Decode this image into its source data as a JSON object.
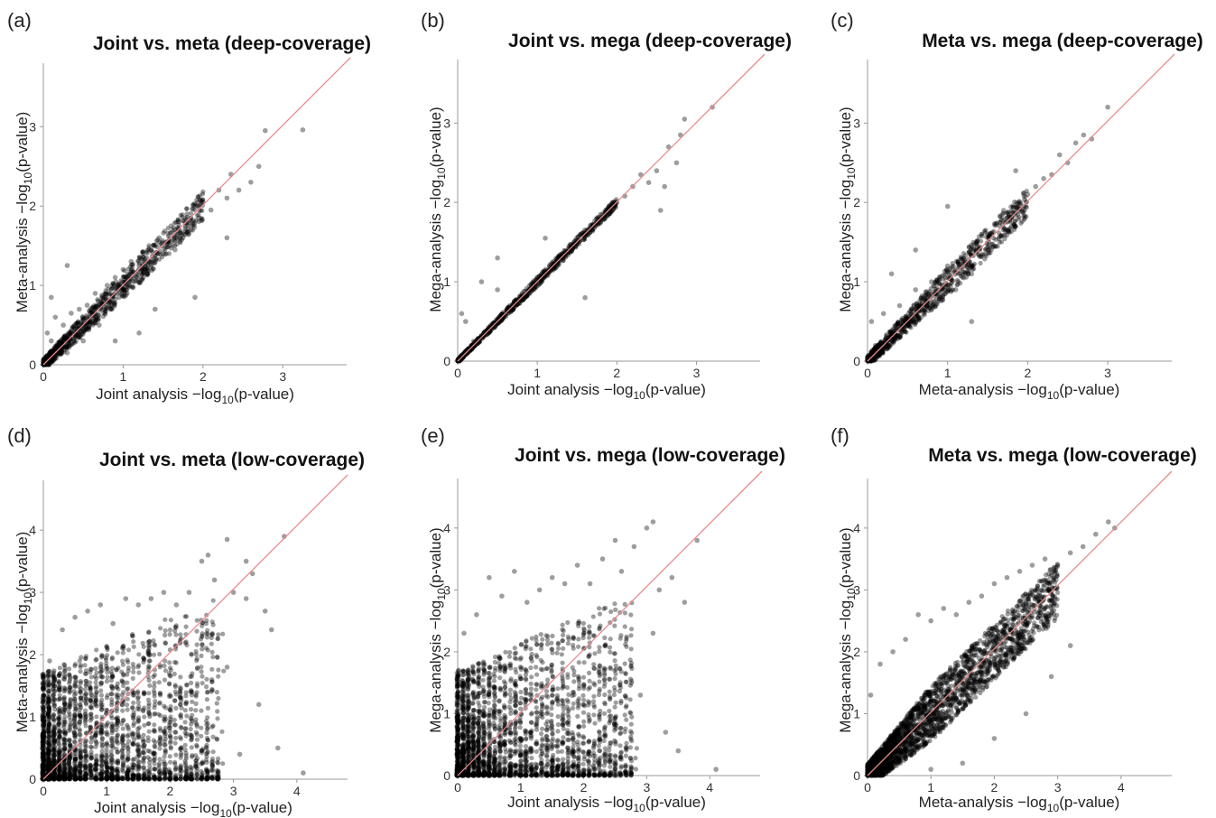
{
  "chart_data": [
    {
      "panel": "(a)",
      "type": "scatter",
      "title": "Joint vs. meta (deep-coverage)",
      "xlabel": {
        "pre": "Joint analysis −log",
        "sub": "10",
        "post": "(p-value)"
      },
      "ylabel": {
        "pre": "Meta-analysis −log",
        "sub": "10",
        "post": "(p-value)"
      },
      "xlim": [
        0,
        3.8
      ],
      "ylim": [
        0,
        3.8
      ],
      "xticks": [
        0,
        1,
        2,
        3
      ],
      "yticks": [
        0,
        1,
        2,
        3
      ],
      "reference_line": "y = x",
      "grid": false,
      "spread": 0.18,
      "xmax_bulk": 2.0,
      "points": [
        [
          0.02,
          0.05
        ],
        [
          0.05,
          0.4
        ],
        [
          0.08,
          0.12
        ],
        [
          0.1,
          0.3
        ],
        [
          0.15,
          0.6
        ],
        [
          0.2,
          0.2
        ],
        [
          0.25,
          0.5
        ],
        [
          0.3,
          0.15
        ],
        [
          0.35,
          0.65
        ],
        [
          0.4,
          0.4
        ],
        [
          0.45,
          0.7
        ],
        [
          0.5,
          0.3
        ],
        [
          0.55,
          0.75
        ],
        [
          0.6,
          0.55
        ],
        [
          0.65,
          0.9
        ],
        [
          0.7,
          0.5
        ],
        [
          0.75,
          0.8
        ],
        [
          0.8,
          1.0
        ],
        [
          0.85,
          0.7
        ],
        [
          0.9,
          1.1
        ],
        [
          0.95,
          0.85
        ],
        [
          1.0,
          1.2
        ],
        [
          1.05,
          0.9
        ],
        [
          1.1,
          1.3
        ],
        [
          1.15,
          1.05
        ],
        [
          1.2,
          1.25
        ],
        [
          1.25,
          1.4
        ],
        [
          1.3,
          1.15
        ],
        [
          1.35,
          1.45
        ],
        [
          1.4,
          1.3
        ],
        [
          1.45,
          1.6
        ],
        [
          1.5,
          1.4
        ],
        [
          1.55,
          1.55
        ],
        [
          1.6,
          1.75
        ],
        [
          1.65,
          1.45
        ],
        [
          1.7,
          1.8
        ],
        [
          1.75,
          1.6
        ],
        [
          1.8,
          1.9
        ],
        [
          1.85,
          1.7
        ],
        [
          1.9,
          2.0
        ],
        [
          1.95,
          1.85
        ],
        [
          2.0,
          2.05
        ],
        [
          2.1,
          1.95
        ],
        [
          2.2,
          2.2
        ],
        [
          2.3,
          2.1
        ],
        [
          2.35,
          2.4
        ],
        [
          2.45,
          2.2
        ],
        [
          2.6,
          2.3
        ],
        [
          2.7,
          2.5
        ],
        [
          2.78,
          2.95
        ],
        [
          3.25,
          2.96
        ],
        [
          0.1,
          0.85
        ],
        [
          0.3,
          1.25
        ],
        [
          0.9,
          0.3
        ],
        [
          1.2,
          0.4
        ],
        [
          1.4,
          0.7
        ],
        [
          1.9,
          0.85
        ],
        [
          2.3,
          1.6
        ]
      ]
    },
    {
      "panel": "(b)",
      "type": "scatter",
      "title": "Joint vs. mega (deep-coverage)",
      "xlabel": {
        "pre": "Joint analysis −log",
        "sub": "10",
        "post": "(p-value)"
      },
      "ylabel": {
        "pre": "Mega-analysis −log",
        "sub": "10",
        "post": "(p-value)"
      },
      "xlim": [
        0,
        3.8
      ],
      "ylim": [
        0,
        3.8
      ],
      "xticks": [
        0,
        1,
        2,
        3
      ],
      "yticks": [
        0,
        1,
        2,
        3
      ],
      "reference_line": "y = x",
      "grid": false,
      "spread": 0.06,
      "xmax_bulk": 2.0,
      "points": [
        [
          0.05,
          0.6
        ],
        [
          0.1,
          0.5
        ],
        [
          0.2,
          0.25
        ],
        [
          0.3,
          0.32
        ],
        [
          0.4,
          0.4
        ],
        [
          0.5,
          0.9
        ],
        [
          0.6,
          0.58
        ],
        [
          0.7,
          0.72
        ],
        [
          0.8,
          0.78
        ],
        [
          0.9,
          0.95
        ],
        [
          1.0,
          1.05
        ],
        [
          1.1,
          1.1
        ],
        [
          1.2,
          1.22
        ],
        [
          1.3,
          1.28
        ],
        [
          1.4,
          1.42
        ],
        [
          1.5,
          1.48
        ],
        [
          1.6,
          1.6
        ],
        [
          1.7,
          1.72
        ],
        [
          1.8,
          1.78
        ],
        [
          1.9,
          1.95
        ],
        [
          2.0,
          2.0
        ],
        [
          2.1,
          2.08
        ],
        [
          2.2,
          2.2
        ],
        [
          2.3,
          2.35
        ],
        [
          2.4,
          2.25
        ],
        [
          2.5,
          2.4
        ],
        [
          2.6,
          2.2
        ],
        [
          2.65,
          2.7
        ],
        [
          2.75,
          2.5
        ],
        [
          2.8,
          2.85
        ],
        [
          2.85,
          3.05
        ],
        [
          3.2,
          3.2
        ],
        [
          0.5,
          1.3
        ],
        [
          1.1,
          1.55
        ],
        [
          0.3,
          1.0
        ],
        [
          1.6,
          0.8
        ],
        [
          2.55,
          1.9
        ]
      ]
    },
    {
      "panel": "(c)",
      "type": "scatter",
      "title": "Meta vs. mega (deep-coverage)",
      "xlabel": {
        "pre": "Meta-analysis −log",
        "sub": "10",
        "post": "(p-value)"
      },
      "ylabel": {
        "pre": "Mega-analysis −log",
        "sub": "10",
        "post": "(p-value)"
      },
      "xlim": [
        0,
        3.8
      ],
      "ylim": [
        0,
        3.8
      ],
      "xticks": [
        0,
        1,
        2,
        3
      ],
      "yticks": [
        0,
        1,
        2,
        3
      ],
      "reference_line": "y = x",
      "grid": false,
      "spread": 0.18,
      "xmax_bulk": 2.0,
      "points": [
        [
          0.05,
          0.5
        ],
        [
          0.1,
          0.2
        ],
        [
          0.2,
          0.6
        ],
        [
          0.3,
          0.3
        ],
        [
          0.4,
          0.7
        ],
        [
          0.5,
          0.45
        ],
        [
          0.6,
          0.9
        ],
        [
          0.7,
          0.6
        ],
        [
          0.8,
          1.0
        ],
        [
          0.9,
          0.8
        ],
        [
          1.0,
          1.2
        ],
        [
          1.1,
          0.9
        ],
        [
          1.2,
          1.3
        ],
        [
          1.3,
          1.1
        ],
        [
          1.4,
          1.4
        ],
        [
          1.5,
          1.6
        ],
        [
          1.6,
          1.45
        ],
        [
          1.7,
          1.9
        ],
        [
          1.8,
          1.7
        ],
        [
          1.9,
          2.0
        ],
        [
          2.0,
          2.1
        ],
        [
          2.1,
          2.2
        ],
        [
          2.2,
          2.3
        ],
        [
          2.3,
          2.35
        ],
        [
          2.4,
          2.6
        ],
        [
          2.5,
          2.5
        ],
        [
          2.6,
          2.75
        ],
        [
          2.7,
          2.85
        ],
        [
          2.8,
          2.8
        ],
        [
          3.0,
          3.2
        ],
        [
          1.0,
          1.95
        ],
        [
          0.3,
          1.1
        ],
        [
          1.3,
          0.5
        ],
        [
          0.6,
          1.4
        ],
        [
          1.85,
          2.4
        ]
      ]
    },
    {
      "panel": "(d)",
      "type": "scatter",
      "title": "Joint vs. meta (low-coverage)",
      "xlabel": {
        "pre": "Joint analysis −log",
        "sub": "10",
        "post": "(p-value)"
      },
      "ylabel": {
        "pre": "Meta-analysis −log",
        "sub": "10",
        "post": "(p-value)"
      },
      "xlim": [
        0,
        4.8
      ],
      "ylim": [
        0,
        4.8
      ],
      "xticks": [
        0,
        1,
        2,
        3,
        4
      ],
      "yticks": [
        0,
        1,
        2,
        3,
        4
      ],
      "reference_line": "y = x",
      "grid": false,
      "spread": 1.2,
      "xmax_bulk": 2.8,
      "points": [
        [
          0.1,
          1.9
        ],
        [
          0.3,
          2.4
        ],
        [
          0.5,
          2.6
        ],
        [
          0.7,
          2.7
        ],
        [
          0.9,
          2.8
        ],
        [
          1.1,
          2.5
        ],
        [
          1.3,
          2.9
        ],
        [
          1.5,
          2.8
        ],
        [
          1.7,
          2.9
        ],
        [
          1.9,
          3.0
        ],
        [
          2.1,
          2.8
        ],
        [
          2.3,
          3.0
        ],
        [
          2.5,
          3.5
        ],
        [
          2.6,
          3.6
        ],
        [
          2.7,
          3.2
        ],
        [
          2.9,
          3.85
        ],
        [
          3.0,
          3.0
        ],
        [
          3.2,
          3.5
        ],
        [
          3.3,
          3.3
        ],
        [
          3.5,
          2.7
        ],
        [
          3.6,
          2.4
        ],
        [
          3.8,
          3.9
        ],
        [
          3.4,
          1.2
        ],
        [
          3.7,
          0.5
        ],
        [
          4.1,
          0.1
        ],
        [
          3.1,
          0.4
        ],
        [
          2.9,
          1.8
        ],
        [
          3.2,
          2.9
        ],
        [
          2.4,
          0.2
        ]
      ]
    },
    {
      "panel": "(e)",
      "type": "scatter",
      "title": "Joint vs. mega (low-coverage)",
      "xlabel": {
        "pre": "Joint analysis −log",
        "sub": "10",
        "post": "(p-value)"
      },
      "ylabel": {
        "pre": "Mega-analysis −log",
        "sub": "10",
        "post": "(p-value)"
      },
      "xlim": [
        0,
        4.8
      ],
      "ylim": [
        0,
        4.8
      ],
      "xticks": [
        0,
        1,
        2,
        3,
        4
      ],
      "yticks": [
        0,
        1,
        2,
        3,
        4
      ],
      "reference_line": "y = x",
      "grid": false,
      "spread": 1.2,
      "xmax_bulk": 2.8,
      "points": [
        [
          0.1,
          2.3
        ],
        [
          0.3,
          2.6
        ],
        [
          0.5,
          3.2
        ],
        [
          0.7,
          2.9
        ],
        [
          0.9,
          3.3
        ],
        [
          1.1,
          2.8
        ],
        [
          1.3,
          3.0
        ],
        [
          1.5,
          3.2
        ],
        [
          1.7,
          3.1
        ],
        [
          1.9,
          3.4
        ],
        [
          2.1,
          3.1
        ],
        [
          2.3,
          3.5
        ],
        [
          2.5,
          3.8
        ],
        [
          2.6,
          3.3
        ],
        [
          2.8,
          3.7
        ],
        [
          3.0,
          4.0
        ],
        [
          3.1,
          4.1
        ],
        [
          3.2,
          3.0
        ],
        [
          3.4,
          3.2
        ],
        [
          3.6,
          2.8
        ],
        [
          3.8,
          3.8
        ],
        [
          3.3,
          0.7
        ],
        [
          3.5,
          0.4
        ],
        [
          4.1,
          0.1
        ],
        [
          2.9,
          1.3
        ],
        [
          3.1,
          2.3
        ],
        [
          2.4,
          0.3
        ]
      ]
    },
    {
      "panel": "(f)",
      "type": "scatter",
      "title": "Meta vs. mega (low-coverage)",
      "xlabel": {
        "pre": "Meta-analysis −log",
        "sub": "10",
        "post": "(p-value)"
      },
      "ylabel": {
        "pre": "Mega-analysis −log",
        "sub": "10",
        "post": "(p-value)"
      },
      "xlim": [
        0,
        4.8
      ],
      "ylim": [
        0,
        4.8
      ],
      "xticks": [
        0,
        1,
        2,
        3,
        4
      ],
      "yticks": [
        0,
        1,
        2,
        3,
        4
      ],
      "reference_line": "y = x",
      "grid": false,
      "spread": 0.45,
      "xmax_bulk": 3.0,
      "points": [
        [
          0.05,
          1.3
        ],
        [
          0.2,
          1.8
        ],
        [
          0.4,
          2.0
        ],
        [
          0.6,
          2.2
        ],
        [
          0.8,
          2.6
        ],
        [
          1.0,
          2.5
        ],
        [
          1.2,
          2.7
        ],
        [
          1.4,
          2.6
        ],
        [
          1.6,
          2.8
        ],
        [
          1.8,
          2.9
        ],
        [
          2.0,
          3.1
        ],
        [
          2.2,
          3.2
        ],
        [
          2.4,
          3.3
        ],
        [
          2.6,
          3.4
        ],
        [
          2.8,
          3.5
        ],
        [
          3.0,
          3.4
        ],
        [
          3.2,
          3.6
        ],
        [
          3.4,
          3.7
        ],
        [
          3.6,
          3.9
        ],
        [
          3.8,
          4.1
        ],
        [
          3.9,
          4.0
        ],
        [
          1.5,
          0.2
        ],
        [
          2.0,
          0.6
        ],
        [
          2.5,
          1.0
        ],
        [
          2.9,
          1.6
        ],
        [
          3.2,
          2.1
        ],
        [
          1.0,
          0.1
        ],
        [
          2.7,
          2.4
        ]
      ]
    }
  ]
}
